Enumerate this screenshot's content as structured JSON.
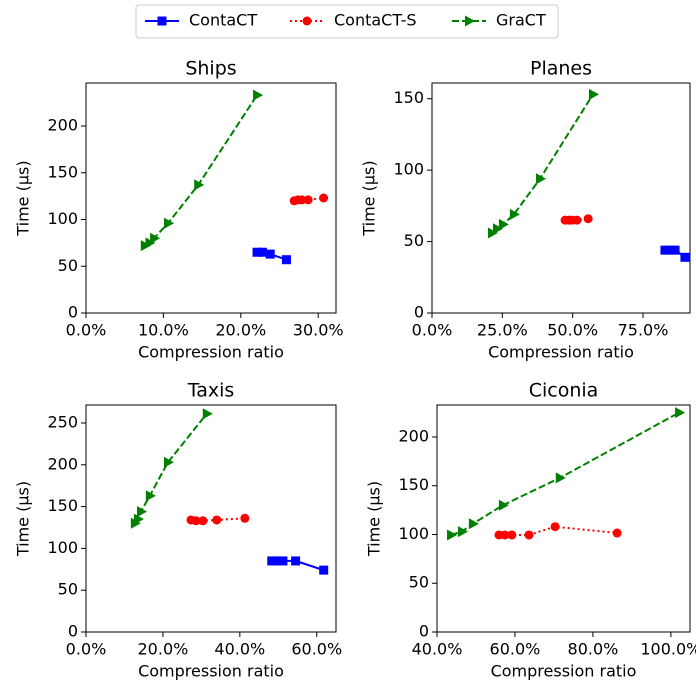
{
  "chart_data": [
    {
      "type": "line",
      "title": "Ships",
      "x_label": "Compression ratio",
      "y_label": "Time (µs)",
      "xlim": [
        0,
        32.3
      ],
      "ylim": [
        0,
        246
      ],
      "xticks": [
        {
          "value": 0,
          "label": "0.0%"
        },
        {
          "value": 10,
          "label": "10.0%"
        },
        {
          "value": 20,
          "label": "20.0%"
        },
        {
          "value": 30,
          "label": "30.0%"
        }
      ],
      "yticks": [
        0,
        50,
        100,
        150,
        200
      ],
      "series": [
        {
          "name": "ContaCT",
          "color": "#0000ff",
          "line_style": "solid",
          "marker": "square",
          "x": [
            22.1,
            22.8,
            23.8,
            25.9
          ],
          "values": [
            65,
            65,
            63,
            57
          ]
        },
        {
          "name": "ContaCT-S",
          "color": "#ff0000",
          "line_style": "dotted",
          "marker": "circle",
          "x": [
            26.9,
            27.4,
            27.9,
            28.7,
            30.7
          ],
          "values": [
            120,
            121,
            121,
            121,
            123
          ]
        },
        {
          "name": "GraCT",
          "color": "#008000",
          "line_style": "dashed",
          "marker": "triangle-right",
          "x": [
            7.6,
            8.2,
            8.8,
            10.6,
            14.5,
            22.1
          ],
          "values": [
            72,
            75,
            80,
            96,
            137,
            233
          ]
        }
      ]
    },
    {
      "type": "line",
      "title": "Planes",
      "x_label": "Compression ratio",
      "y_label": "Time (µs)",
      "xlim": [
        0,
        91.7
      ],
      "ylim": [
        0,
        161
      ],
      "xticks": [
        {
          "value": 0,
          "label": "0.0%"
        },
        {
          "value": 25,
          "label": "25.0%"
        },
        {
          "value": 50,
          "label": "50.0%"
        },
        {
          "value": 75,
          "label": "75.0%"
        }
      ],
      "yticks": [
        0,
        50,
        100,
        150
      ],
      "series": [
        {
          "name": "ContaCT",
          "color": "#0000ff",
          "line_style": "solid",
          "marker": "square",
          "x": [
            82.8,
            84.6,
            86.4,
            89.9
          ],
          "values": [
            44,
            44,
            44,
            39
          ]
        },
        {
          "name": "ContaCT-S",
          "color": "#ff0000",
          "line_style": "dotted",
          "marker": "circle",
          "x": [
            47.3,
            48.7,
            49.8,
            51.5,
            55.5
          ],
          "values": [
            65,
            65,
            65,
            65,
            66
          ]
        },
        {
          "name": "GraCT",
          "color": "#008000",
          "line_style": "dashed",
          "marker": "triangle-right",
          "x": [
            21.3,
            23.1,
            25.2,
            29.1,
            38.4,
            57.2
          ],
          "values": [
            56,
            59,
            62,
            69,
            94,
            153
          ]
        }
      ]
    },
    {
      "type": "line",
      "title": "Taxis",
      "x_label": "Compression ratio",
      "y_label": "Time (µs)",
      "xlim": [
        0,
        65
      ],
      "ylim": [
        0,
        271.5
      ],
      "xticks": [
        {
          "value": 0,
          "label": "0.0%"
        },
        {
          "value": 20,
          "label": "20.0%"
        },
        {
          "value": 40,
          "label": "40.0%"
        },
        {
          "value": 60,
          "label": "60.0%"
        }
      ],
      "yticks": [
        0,
        50,
        100,
        150,
        200,
        250
      ],
      "series": [
        {
          "name": "ContaCT",
          "color": "#0000ff",
          "line_style": "solid",
          "marker": "square",
          "x": [
            48.3,
            49.4,
            51.2,
            54.5,
            61.8
          ],
          "values": [
            85,
            85,
            85,
            85,
            74
          ]
        },
        {
          "name": "ContaCT-S",
          "color": "#ff0000",
          "line_style": "dotted",
          "marker": "circle",
          "x": [
            27.3,
            28.6,
            30.4,
            34.0,
            41.3
          ],
          "values": [
            134,
            133,
            133,
            134,
            136
          ]
        },
        {
          "name": "GraCT",
          "color": "#008000",
          "line_style": "dashed",
          "marker": "triangle-right",
          "x": [
            12.7,
            13.5,
            14.3,
            16.6,
            21.3,
            31.4
          ],
          "values": [
            130,
            135,
            144,
            163,
            203,
            261
          ]
        }
      ]
    },
    {
      "type": "line",
      "title": "Ciconia",
      "x_label": "Compression ratio",
      "y_label": "Time (µs)",
      "xlim": [
        40,
        104.9
      ],
      "ylim": [
        0,
        232.8
      ],
      "xticks": [
        {
          "value": 40,
          "label": "40.0%"
        },
        {
          "value": 60,
          "label": "60.0%"
        },
        {
          "value": 80,
          "label": "80.0%"
        },
        {
          "value": 100,
          "label": "100.0%"
        }
      ],
      "yticks": [
        0,
        50,
        100,
        150,
        200
      ],
      "series": [
        {
          "name": "ContaCT-S",
          "color": "#ff0000",
          "line_style": "dotted",
          "marker": "circle",
          "x": [
            55.9,
            57.4,
            59.2,
            63.6,
            70.3,
            86.2
          ],
          "values": [
            99.5,
            99.5,
            99.5,
            99.5,
            108,
            101.5
          ]
        },
        {
          "name": "GraCT",
          "color": "#008000",
          "line_style": "dashed",
          "marker": "triangle-right",
          "x": [
            43.6,
            46.4,
            49.2,
            56.9,
            71.5,
            102.1
          ],
          "values": [
            99.5,
            103,
            111,
            130,
            158,
            225
          ]
        }
      ]
    }
  ]
}
